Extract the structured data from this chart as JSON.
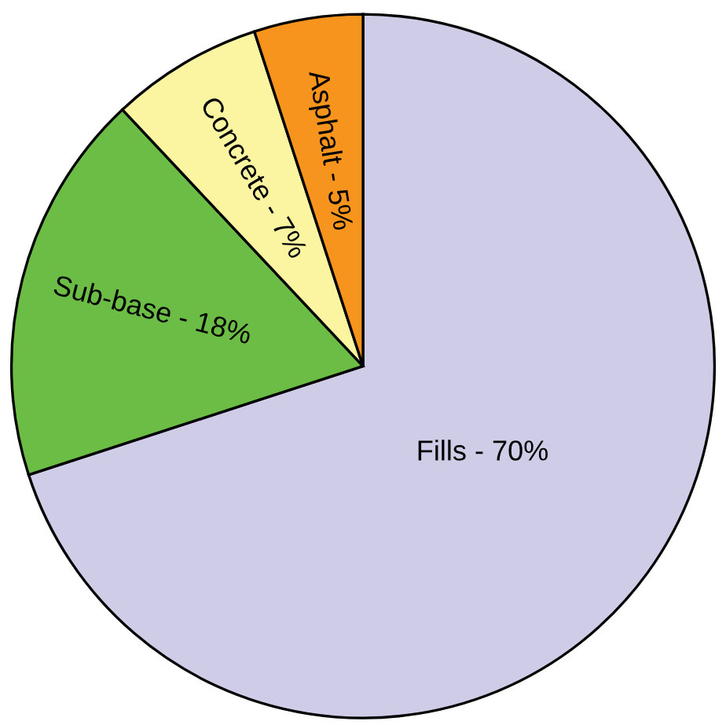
{
  "chart_data": {
    "type": "pie",
    "categories": [
      "Fills - 70%",
      "Sub-base - 18%",
      "Concrete - 7%",
      "Asphalt - 5%"
    ],
    "values": [
      70,
      18,
      7,
      5
    ],
    "colors": [
      "#cfcce8",
      "#6bbd45",
      "#fbf4a0",
      "#f7941d"
    ]
  }
}
